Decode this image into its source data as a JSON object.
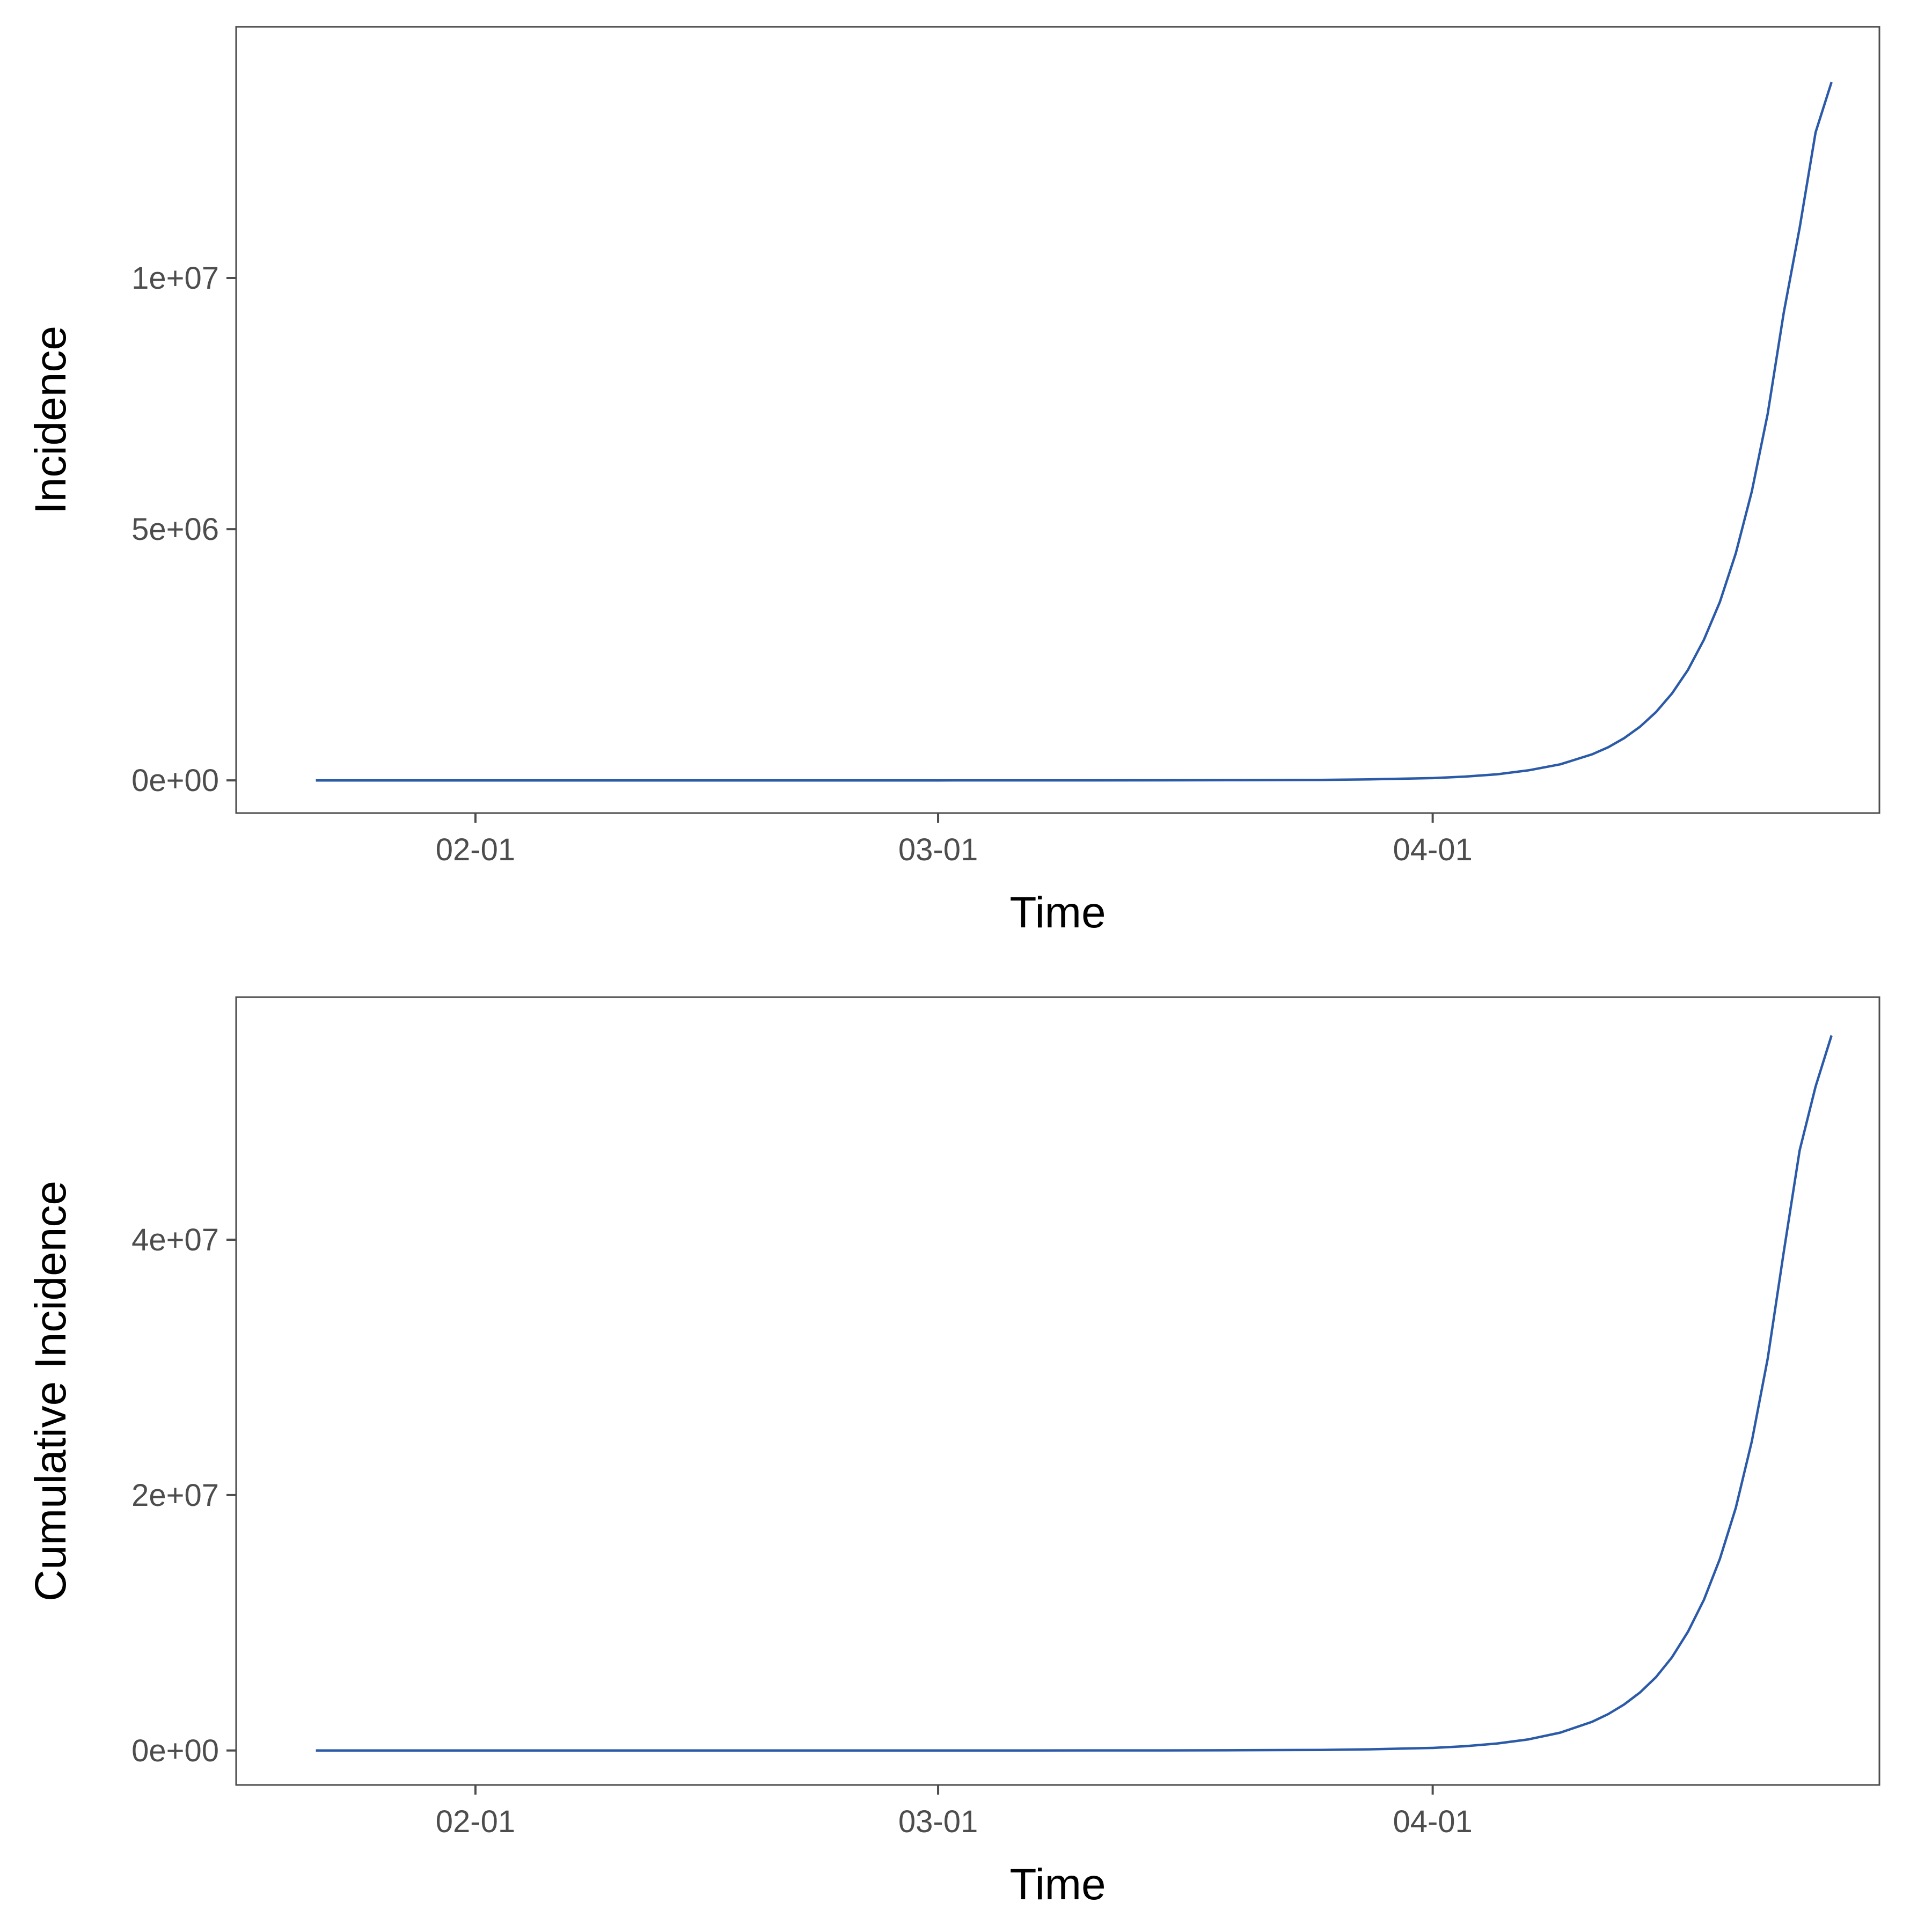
{
  "colors": {
    "line": "#2b5aa8",
    "frame": "#4d4d4d"
  },
  "chart_data": [
    {
      "type": "line",
      "xlabel": "Time",
      "ylabel": "Incidence",
      "grid": false,
      "xlim": [
        "2020-01-17",
        "2020-04-29"
      ],
      "ylim": [
        -650000,
        15000000
      ],
      "x_ticks": [
        {
          "value": "2020-02-01",
          "label": "02-01"
        },
        {
          "value": "2020-03-01",
          "label": "03-01"
        },
        {
          "value": "2020-04-01",
          "label": "04-01"
        }
      ],
      "y_ticks": [
        {
          "value": 0,
          "label": "0e+00"
        },
        {
          "value": 5000000,
          "label": "5e+06"
        },
        {
          "value": 10000000,
          "label": "1e+07"
        }
      ],
      "series": [
        {
          "x": [
            "2020-01-22",
            "2020-02-01",
            "2020-02-15",
            "2020-03-01",
            "2020-03-15",
            "2020-03-20",
            "2020-03-25",
            "2020-03-28",
            "2020-04-01",
            "2020-04-03",
            "2020-04-05",
            "2020-04-07",
            "2020-04-09",
            "2020-04-11",
            "2020-04-12",
            "2020-04-13",
            "2020-04-14",
            "2020-04-15",
            "2020-04-16",
            "2020-04-17",
            "2020-04-18",
            "2020-04-19",
            "2020-04-20",
            "2020-04-21",
            "2020-04-22",
            "2020-04-23",
            "2020-04-24",
            "2020-04-25",
            "2020-04-26"
          ],
          "y": [
            0,
            0,
            0,
            0,
            2000,
            5000,
            10000,
            20000,
            45000,
            75000,
            120000,
            200000,
            320000,
            520000,
            660000,
            840000,
            1070000,
            1360000,
            1730000,
            2200000,
            2800000,
            3550000,
            4520000,
            5750000,
            7300000,
            9300000,
            11000000,
            12900000,
            13900000
          ]
        }
      ]
    },
    {
      "type": "line",
      "xlabel": "Time",
      "ylabel": "Cumulative Incidence",
      "grid": false,
      "xlim": [
        "2020-01-17",
        "2020-04-29"
      ],
      "ylim": [
        -2700000,
        59000000
      ],
      "x_ticks": [
        {
          "value": "2020-02-01",
          "label": "02-01"
        },
        {
          "value": "2020-03-01",
          "label": "03-01"
        },
        {
          "value": "2020-04-01",
          "label": "04-01"
        }
      ],
      "y_ticks": [
        {
          "value": 0,
          "label": "0e+00"
        },
        {
          "value": 20000000,
          "label": "2e+07"
        },
        {
          "value": 40000000,
          "label": "4e+07"
        }
      ],
      "series": [
        {
          "x": [
            "2020-01-22",
            "2020-02-01",
            "2020-02-15",
            "2020-03-01",
            "2020-03-15",
            "2020-03-20",
            "2020-03-25",
            "2020-03-28",
            "2020-04-01",
            "2020-04-03",
            "2020-04-05",
            "2020-04-07",
            "2020-04-09",
            "2020-04-11",
            "2020-04-12",
            "2020-04-13",
            "2020-04-14",
            "2020-04-15",
            "2020-04-16",
            "2020-04-17",
            "2020-04-18",
            "2020-04-19",
            "2020-04-20",
            "2020-04-21",
            "2020-04-22",
            "2020-04-23",
            "2020-04-24",
            "2020-04-25",
            "2020-04-26"
          ],
          "y": [
            0,
            0,
            0,
            0,
            8000,
            20000,
            45000,
            90000,
            200000,
            330000,
            540000,
            870000,
            1400000,
            2250000,
            2850000,
            3600000,
            4550000,
            5750000,
            7300000,
            9300000,
            11800000,
            15000000,
            19000000,
            24200000,
            30700000,
            39000000,
            47000000,
            52000000,
            56000000
          ]
        }
      ]
    }
  ]
}
